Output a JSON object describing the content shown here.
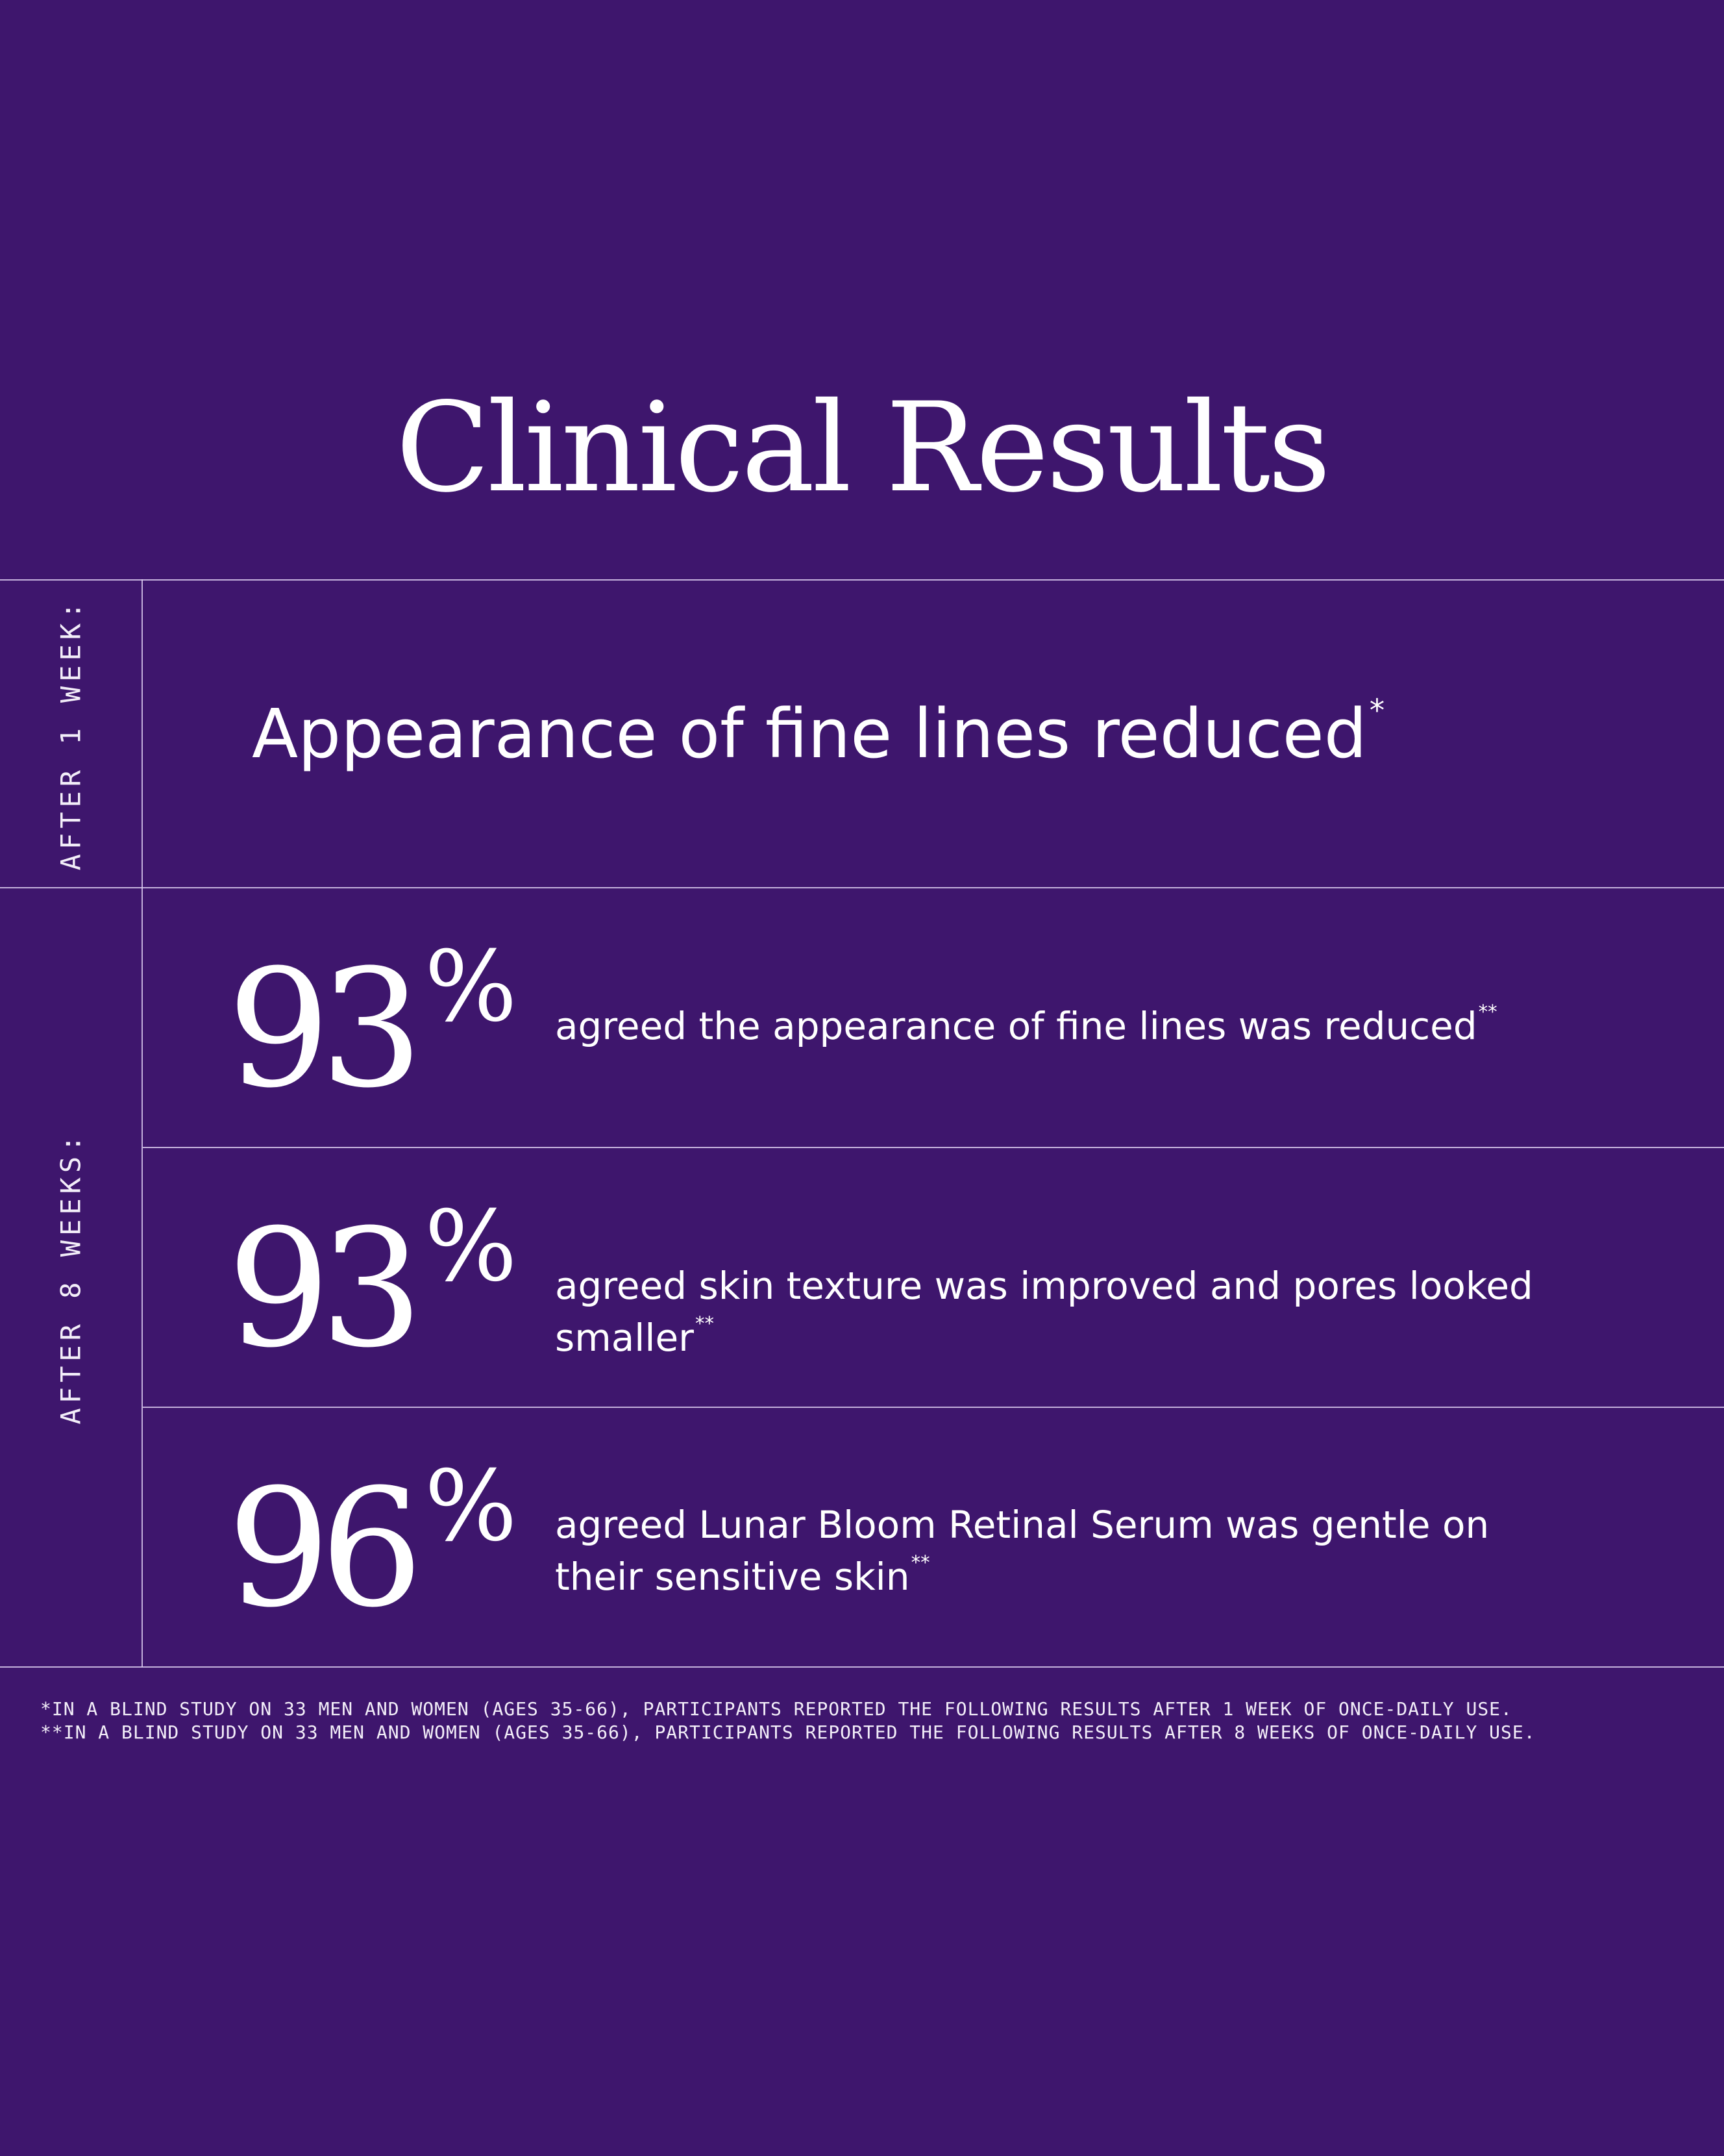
{
  "title": "Clinical Results",
  "sections": {
    "week1": {
      "label": "AFTER 1 WEEK:",
      "text": "Appearance of fine lines reduced",
      "mark": "*"
    },
    "week8": {
      "label": "AFTER 8 WEEKS:",
      "stats": [
        {
          "value": "93",
          "unit": "%",
          "text": "agreed the appearance of fine lines was reduced",
          "mark": "**"
        },
        {
          "value": "93",
          "unit": "%",
          "text": "agreed skin texture was improved and pores looked smaller",
          "mark": "**"
        },
        {
          "value": "96",
          "unit": "%",
          "text": "agreed Lunar Bloom Retinal Serum was gentle on their sensitive skin",
          "mark": "**"
        }
      ]
    }
  },
  "footnotes": [
    "*IN A BLIND STUDY ON 33 MEN AND WOMEN (AGES 35-66), PARTICIPANTS REPORTED THE FOLLOWING RESULTS AFTER 1 WEEK OF ONCE-DAILY USE.",
    "**IN A BLIND STUDY ON 33 MEN AND WOMEN (AGES 35-66), PARTICIPANTS REPORTED THE FOLLOWING RESULTS AFTER 8 WEEKS OF ONCE-DAILY USE."
  ],
  "colors": {
    "background": "#3e166d",
    "text": "#ffffff",
    "rule": "#dccdf0"
  }
}
